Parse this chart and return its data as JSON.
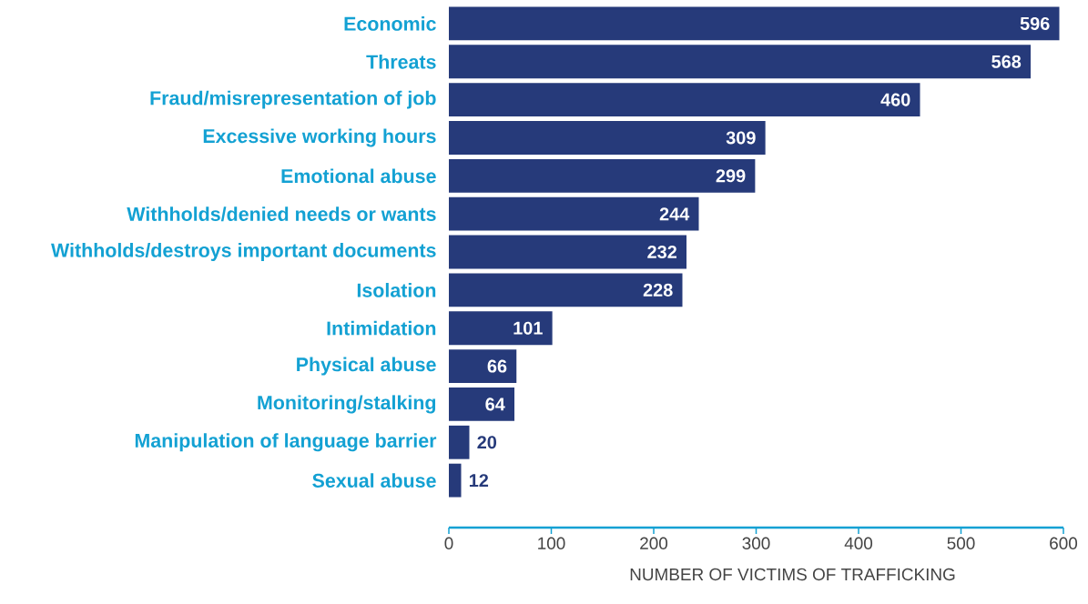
{
  "chart_data": {
    "type": "bar",
    "orientation": "horizontal",
    "categories": [
      "Economic",
      "Threats",
      "Fraud/misrepresentation of job",
      "Excessive working hours",
      "Emotional abuse",
      "Withholds/denied needs or wants",
      "Withholds/destroys important documents",
      "Isolation",
      "Intimidation",
      "Physical abuse",
      "Monitoring/stalking",
      "Manipulation of language barrier",
      "Sexual abuse"
    ],
    "values": [
      596,
      568,
      460,
      309,
      299,
      244,
      232,
      228,
      101,
      66,
      64,
      20,
      12
    ],
    "color": "#263a7a",
    "xlim": [
      0,
      600
    ],
    "xticks": [
      0,
      100,
      200,
      300,
      400,
      500,
      600
    ],
    "xlabel": "NUMBER OF VICTIMS OF TRAFFICKING",
    "data_labels": true,
    "grid": false
  }
}
